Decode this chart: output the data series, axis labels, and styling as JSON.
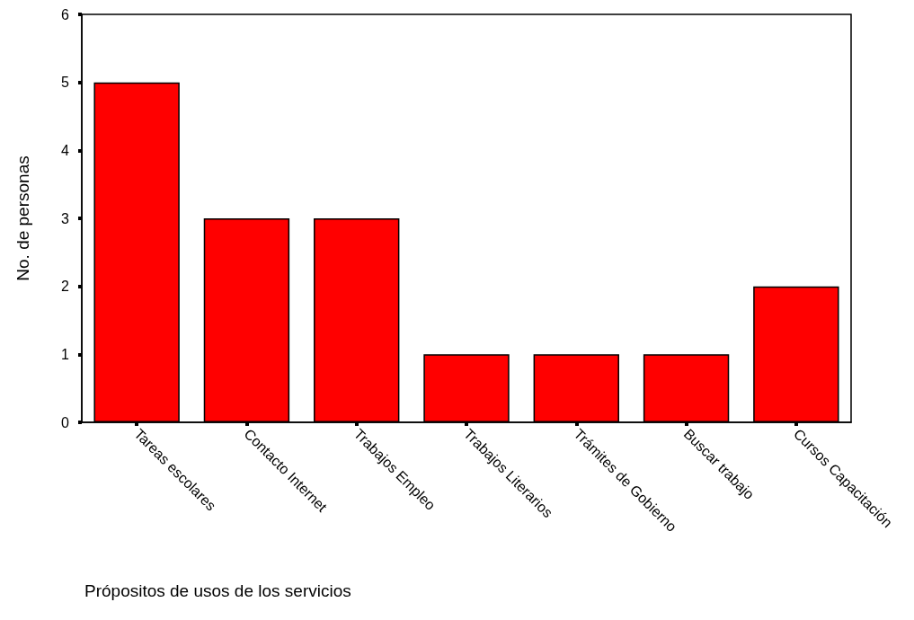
{
  "chart_data": {
    "type": "bar",
    "xlabel": "Própositos de usos de los servicios",
    "ylabel": "No. de personas",
    "categories": [
      "Tareas escolares",
      "Contacto Internet",
      "Trabajos Empleo",
      "Trabajos Literarios",
      "Trámites de Gobierno",
      "Buscar trabajo",
      "Cursos Capacitación"
    ],
    "values": [
      5,
      3,
      3,
      1,
      1,
      1,
      2
    ],
    "color": "#ff0000",
    "ylim": [
      0,
      6
    ],
    "yticks": [
      0,
      1,
      2,
      3,
      4,
      5,
      6
    ],
    "grid": false
  }
}
